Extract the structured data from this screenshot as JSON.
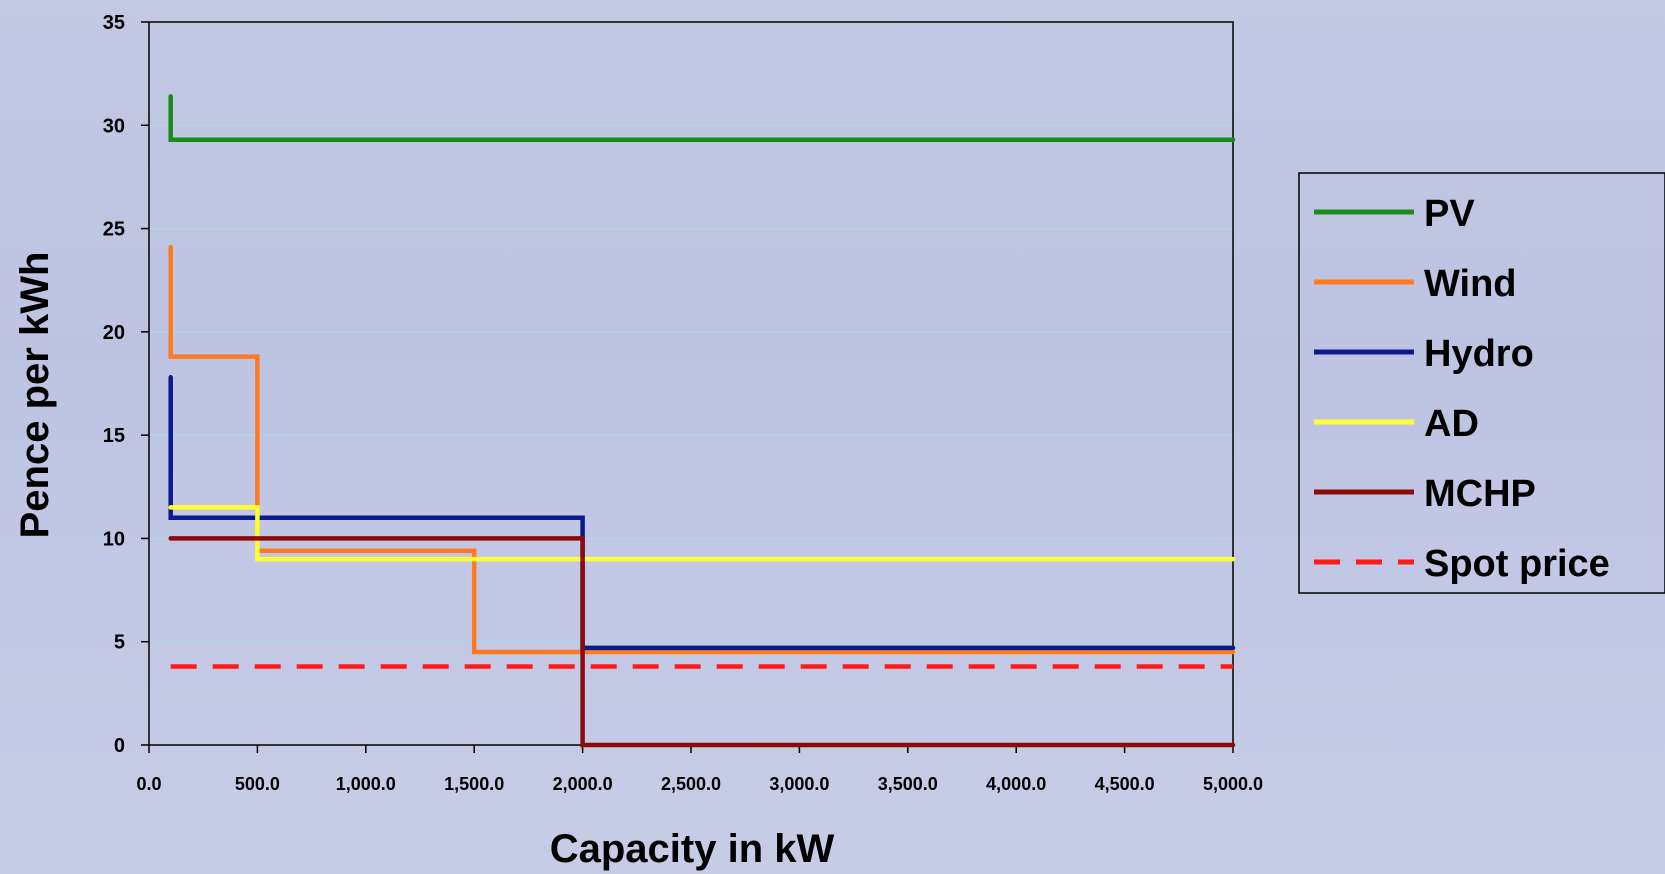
{
  "chart_data": {
    "type": "line",
    "title": "",
    "xlabel": "Capacity in kW",
    "ylabel": "Pence per kWh",
    "xlim": [
      0,
      5000
    ],
    "ylim": [
      0,
      35
    ],
    "xticks": [
      0,
      500,
      1000,
      1500,
      2000,
      2500,
      3000,
      3500,
      4000,
      4500,
      5000
    ],
    "xtick_labels": [
      "0.0",
      "500.0",
      "1,000.0",
      "1,500.0",
      "2,000.0",
      "2,500.0",
      "3,000.0",
      "3,500.0",
      "4,000.0",
      "4,500.0",
      "5,000.0"
    ],
    "yticks": [
      0,
      5,
      10,
      15,
      20,
      25,
      30,
      35
    ],
    "ytick_labels": [
      "0",
      "5",
      "10",
      "15",
      "20",
      "25",
      "30",
      "35"
    ],
    "grid": true,
    "legend_position": "right",
    "series": [
      {
        "name": "PV",
        "color": "#1a8a1a",
        "dashed": false,
        "x": [
          100,
          100,
          5000
        ],
        "y": [
          31.4,
          29.3,
          29.3
        ]
      },
      {
        "name": "Wind",
        "color": "#ff7a1f",
        "dashed": false,
        "x": [
          100,
          100,
          500,
          500,
          1500,
          1500,
          5000
        ],
        "y": [
          24.1,
          18.8,
          18.8,
          9.4,
          9.4,
          4.5,
          4.5
        ]
      },
      {
        "name": "Hydro",
        "color": "#0a1a8c",
        "dashed": false,
        "x": [
          100,
          100,
          2000,
          2000,
          5000
        ],
        "y": [
          17.8,
          11.0,
          11.0,
          4.7,
          4.7
        ]
      },
      {
        "name": "AD",
        "color": "#ffff33",
        "dashed": false,
        "x": [
          100,
          500,
          500,
          5000
        ],
        "y": [
          11.5,
          11.5,
          9.0,
          9.0
        ]
      },
      {
        "name": "MCHP",
        "color": "#8b0a0a",
        "dashed": false,
        "x": [
          100,
          2000,
          2000,
          5000
        ],
        "y": [
          10.0,
          10.0,
          0.0,
          0.0
        ]
      },
      {
        "name": "Spot price",
        "color": "#ff1a1a",
        "dashed": true,
        "x": [
          100,
          5000
        ],
        "y": [
          3.8,
          3.8
        ]
      }
    ]
  }
}
